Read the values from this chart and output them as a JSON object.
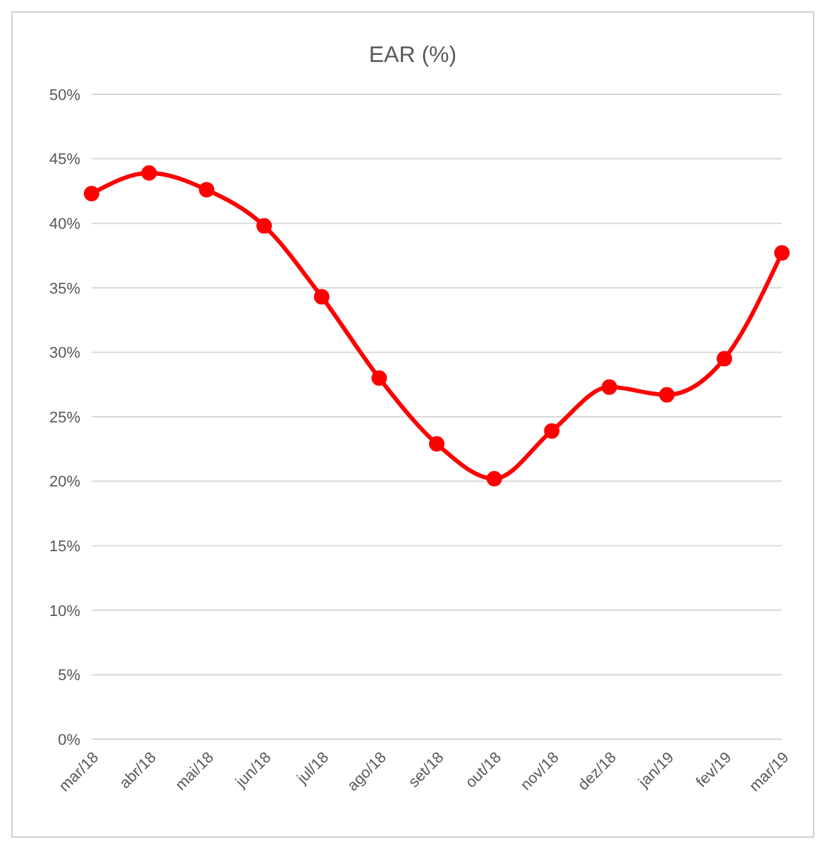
{
  "chart_data": {
    "type": "line",
    "title": "EAR (%)",
    "categories": [
      "mar/18",
      "abr/18",
      "mai/18",
      "jun/18",
      "jul/18",
      "ago/18",
      "set/18",
      "out/18",
      "nov/18",
      "dez/18",
      "jan/19",
      "fev/19",
      "mar/19"
    ],
    "series": [
      {
        "color": "#ff0000",
        "values": [
          42.3,
          43.9,
          42.6,
          39.8,
          34.3,
          28.0,
          22.9,
          20.2,
          23.9,
          27.3,
          26.7,
          29.5,
          37.7
        ]
      }
    ],
    "ylim": [
      0,
      50
    ],
    "yticks": [
      {
        "value": 0,
        "label": "0%"
      },
      {
        "value": 5,
        "label": "5%"
      },
      {
        "value": 10,
        "label": "10%"
      },
      {
        "value": 15,
        "label": "15%"
      },
      {
        "value": 20,
        "label": "20%"
      },
      {
        "value": 25,
        "label": "25%"
      },
      {
        "value": 30,
        "label": "30%"
      },
      {
        "value": 35,
        "label": "35%"
      },
      {
        "value": 40,
        "label": "40%"
      },
      {
        "value": 45,
        "label": "45%"
      },
      {
        "value": 50,
        "label": "50%"
      }
    ],
    "grid": "y",
    "marker": "circle",
    "line_style": "solid"
  }
}
